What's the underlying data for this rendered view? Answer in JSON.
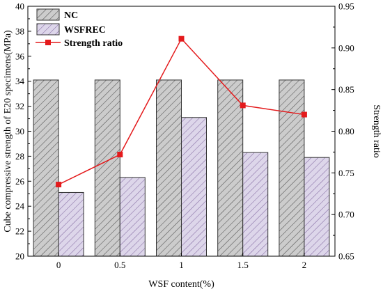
{
  "chart_data": {
    "type": "bar",
    "xlabel": "WSF content(%)",
    "ylabel": "Cube compressive strength of E20 specimens(MPa)",
    "y2label": "Strength ratio",
    "categories": [
      "0",
      "0.5",
      "1",
      "1.5",
      "2"
    ],
    "ylim": [
      20,
      40
    ],
    "y2lim": [
      0.65,
      0.95
    ],
    "yticks": [
      "20",
      "22",
      "24",
      "26",
      "28",
      "30",
      "32",
      "34",
      "36",
      "38",
      "40"
    ],
    "y2ticks": [
      "0.65",
      "0.70",
      "0.75",
      "0.80",
      "0.85",
      "0.90",
      "0.95"
    ],
    "legend_position": "top-left",
    "series": [
      {
        "name": "NC",
        "kind": "bar",
        "axis": "left",
        "fill": "#cccccc",
        "hatch": "#444444",
        "values": [
          34.1,
          34.1,
          34.1,
          34.1,
          34.1
        ]
      },
      {
        "name": "WSFREC",
        "kind": "bar",
        "axis": "left",
        "fill": "#ddd6ea",
        "hatch": "#7a5f9a",
        "values": [
          25.1,
          26.3,
          31.1,
          28.3,
          27.9
        ]
      },
      {
        "name": "Strength ratio",
        "kind": "line",
        "axis": "right",
        "color": "#e41a1c",
        "values": [
          0.736,
          0.772,
          0.911,
          0.831,
          0.82
        ]
      }
    ]
  }
}
